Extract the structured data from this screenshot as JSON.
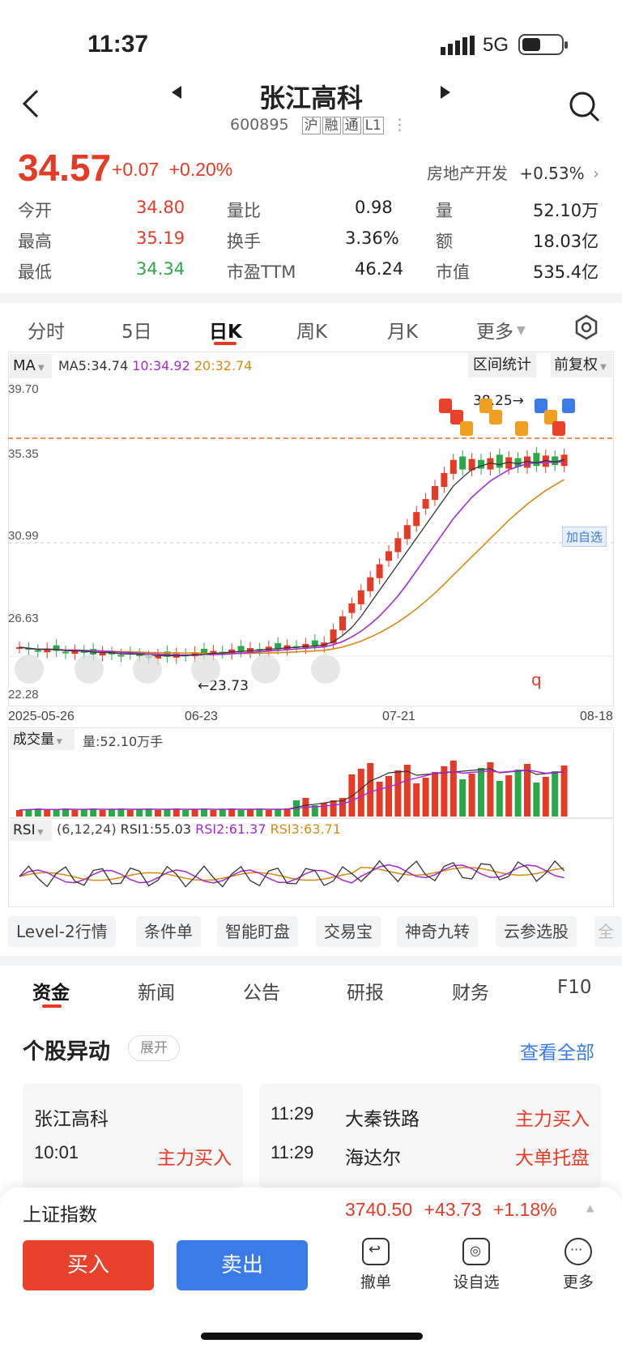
{
  "status": {
    "time": "11:37",
    "network": "5G"
  },
  "header": {
    "title": "张江高科",
    "code": "600895",
    "tags": [
      "沪",
      "融",
      "通",
      "L1"
    ]
  },
  "quote": {
    "price": "34.57",
    "change": "+0.07",
    "change_pct": "+0.20%",
    "sector_name": "房地产开发",
    "sector_pct": "+0.53%"
  },
  "stats": [
    {
      "l1": "今开",
      "v1": "34.80",
      "l2": "量比",
      "v2": "0.98",
      "l3": "量",
      "v3": "52.10万"
    },
    {
      "l1": "最高",
      "v1": "35.19",
      "l2": "换手",
      "v2": "3.36%",
      "l3": "额",
      "v3": "18.03亿"
    },
    {
      "l1": "最低",
      "v1": "34.34",
      "l2": "市盈TTM",
      "v2": "46.24",
      "l3": "市值",
      "v3": "535.4亿"
    }
  ],
  "period_tabs": [
    "分时",
    "5日",
    "日K",
    "周K",
    "月K",
    "更多"
  ],
  "kline": {
    "ma_label": "MA",
    "ma5": "MA5:34.74",
    "ma10": "10:34.92",
    "ma20": "20:32.74",
    "range_stats": "区间统计",
    "adjust": "前复权",
    "price_ticks": [
      "39.70",
      "35.35",
      "30.99",
      "26.63",
      "22.28"
    ],
    "date_ticks": [
      "2025-05-26",
      "06-23",
      "07-21",
      "08-18"
    ],
    "high_note": "38.25→",
    "low_note": "←23.73",
    "add_watch": "加自选",
    "q_mark": "q"
  },
  "volume": {
    "label": "成交量",
    "value": "量:52.10万手"
  },
  "rsi": {
    "label": "RSI",
    "params": "(6,12,24)",
    "rsi1": "RSI1:55.03",
    "rsi2": "RSI2:61.37",
    "rsi3": "RSI3:63.71"
  },
  "feature_tabs": [
    "Level-2行情",
    "条件单",
    "智能盯盘",
    "交易宝",
    "神奇九转",
    "云参选股",
    "全"
  ],
  "info_tabs": [
    "资金",
    "新闻",
    "公告",
    "研报",
    "财务",
    "F10"
  ],
  "movement": {
    "title": "个股异动",
    "expand": "展开",
    "view_all": "查看全部",
    "left": {
      "name": "张江高科",
      "time": "10:01",
      "event": "主力买入"
    },
    "right": [
      {
        "time": "11:29",
        "name": "大秦铁路",
        "event": "主力买入"
      },
      {
        "time": "11:29",
        "name": "海达尔",
        "event": "大单托盘"
      }
    ]
  },
  "index_bar": {
    "name": "上证指数",
    "value": "3740.50",
    "change": "+43.73",
    "pct": "+1.18%"
  },
  "actions": {
    "buy": "买入",
    "sell": "卖出",
    "cancel": "撤单",
    "watch": "设自选",
    "more": "更多"
  },
  "colors": {
    "up": "#e53a25",
    "down": "#2aa94a",
    "ma5": "#333333",
    "ma10": "#a52ad6",
    "ma20": "#d98a13",
    "accent_blue": "#3b7be8"
  }
}
